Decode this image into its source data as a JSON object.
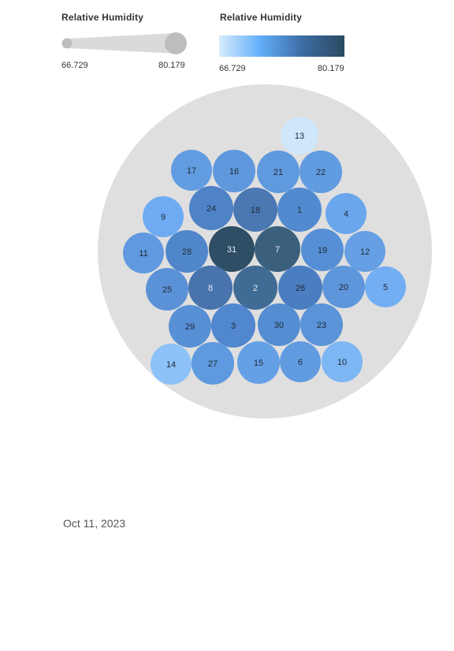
{
  "legends": {
    "size": {
      "title": "Relative Humidity",
      "min_label": "66.729",
      "max_label": "80.179"
    },
    "color": {
      "title": "Relative Humidity",
      "min_label": "66.729",
      "max_label": "80.179",
      "gradient": [
        "#d6ecfd",
        "#61adf9",
        "#3c6ca3",
        "#2a4a60"
      ]
    }
  },
  "date": "Oct 11, 2023",
  "chart_data": {
    "type": "packed-bubble",
    "measure": "Relative Humidity",
    "value_range": [
      66.729,
      80.179
    ],
    "bubbles": [
      {
        "label": "31",
        "color": "#2e4e65"
      },
      {
        "label": "7",
        "color": "#3b607e"
      },
      {
        "label": "2",
        "color": "#3f6b94"
      },
      {
        "label": "18",
        "color": "#4a78b2"
      },
      {
        "label": "8",
        "color": "#4873ad"
      },
      {
        "label": "26",
        "color": "#4b7ec0"
      },
      {
        "label": "24",
        "color": "#4f83c8"
      },
      {
        "label": "28",
        "color": "#5087cb"
      },
      {
        "label": "1",
        "color": "#528ad0"
      },
      {
        "label": "3",
        "color": "#5187cf"
      },
      {
        "label": "30",
        "color": "#548dd2"
      },
      {
        "label": "19",
        "color": "#568fd5"
      },
      {
        "label": "25",
        "color": "#5b92d7"
      },
      {
        "label": "29",
        "color": "#5890d6"
      },
      {
        "label": "23",
        "color": "#5a93d8"
      },
      {
        "label": "20",
        "color": "#5d96db"
      },
      {
        "label": "16",
        "color": "#5f98dd"
      },
      {
        "label": "21",
        "color": "#5f99de"
      },
      {
        "label": "22",
        "color": "#619be0"
      },
      {
        "label": "17",
        "color": "#629de1"
      },
      {
        "label": "27",
        "color": "#5f99df"
      },
      {
        "label": "11",
        "color": "#6199e0"
      },
      {
        "label": "12",
        "color": "#669fe3"
      },
      {
        "label": "6",
        "color": "#619ce1"
      },
      {
        "label": "15",
        "color": "#64a0e6"
      },
      {
        "label": "4",
        "color": "#6aa6ec"
      },
      {
        "label": "9",
        "color": "#6fabf2"
      },
      {
        "label": "5",
        "color": "#73aef3"
      },
      {
        "label": "10",
        "color": "#7cb6f3"
      },
      {
        "label": "14",
        "color": "#8cc2f7"
      },
      {
        "label": "13",
        "color": "#cfe7fb"
      }
    ]
  }
}
